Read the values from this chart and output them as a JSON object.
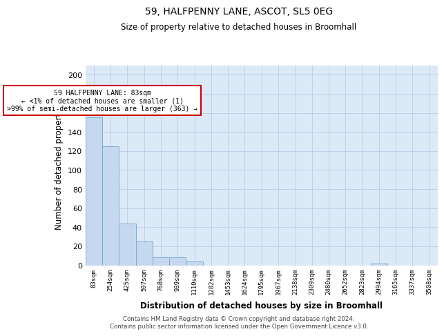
{
  "title": "59, HALFPENNY LANE, ASCOT, SL5 0EG",
  "subtitle": "Size of property relative to detached houses in Broomhall",
  "xlabel": "Distribution of detached houses by size in Broomhall",
  "ylabel": "Number of detached properties",
  "bar_color": "#c5d8f0",
  "bar_edge_color": "#7aadd4",
  "background_color": "#dce9f7",
  "categories": [
    "83sqm",
    "254sqm",
    "425sqm",
    "597sqm",
    "768sqm",
    "939sqm",
    "1110sqm",
    "1282sqm",
    "1453sqm",
    "1624sqm",
    "1795sqm",
    "1967sqm",
    "2138sqm",
    "2309sqm",
    "2480sqm",
    "2652sqm",
    "2823sqm",
    "2994sqm",
    "3165sqm",
    "3337sqm",
    "3508sqm"
  ],
  "values": [
    155,
    125,
    44,
    25,
    8,
    8,
    4,
    0,
    0,
    0,
    0,
    0,
    0,
    0,
    0,
    0,
    0,
    2,
    0,
    0,
    0
  ],
  "ylim": [
    0,
    210
  ],
  "yticks": [
    0,
    20,
    40,
    60,
    80,
    100,
    120,
    140,
    160,
    180,
    200
  ],
  "annotation_line1": "59 HALFPENNY LANE: 83sqm",
  "annotation_line2": "← <1% of detached houses are smaller (1)",
  "annotation_line3": ">99% of semi-detached houses are larger (363) →",
  "footer_line1": "Contains HM Land Registry data © Crown copyright and database right 2024.",
  "footer_line2": "Contains public sector information licensed under the Open Government Licence v3.0.",
  "grid_color": "#b8cfe8"
}
